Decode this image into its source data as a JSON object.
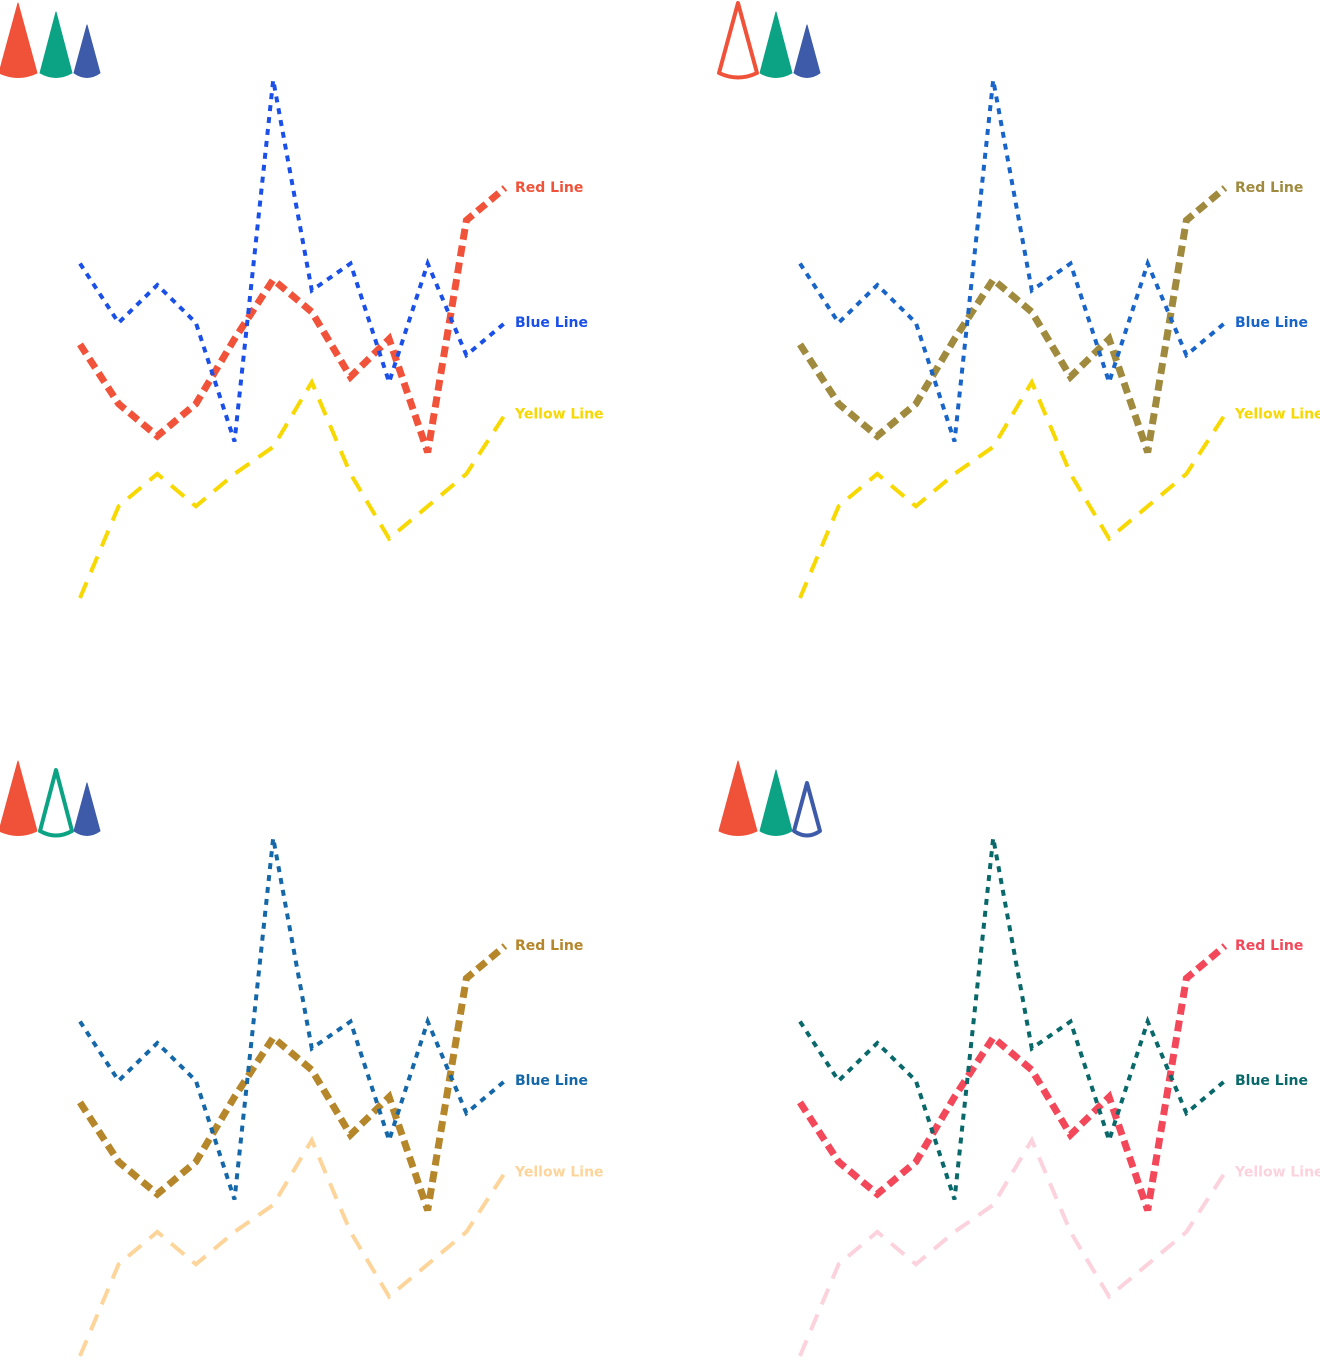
{
  "chart_data": [
    {
      "type": "line",
      "categories": [
        null,
        null,
        null,
        null,
        null,
        null,
        null,
        null,
        null,
        null,
        null,
        null
      ],
      "series": [
        {
          "name": "Red Line",
          "color": "#f1533a",
          "values": [
            51,
            40,
            34,
            40,
            52,
            63,
            57,
            45,
            52,
            31,
            74,
            80
          ]
        },
        {
          "name": "Blue Line",
          "color": "#1a4fe8",
          "values": [
            66,
            55,
            62,
            55,
            33,
            100,
            61,
            66,
            44,
            66,
            49,
            55
          ]
        },
        {
          "name": "Yellow Line",
          "color": "#f7d800",
          "values": [
            4,
            21,
            27,
            21,
            27,
            32,
            44,
            27,
            15,
            21,
            27,
            38
          ]
        }
      ]
    },
    {
      "type": "line",
      "categories": [
        null,
        null,
        null,
        null,
        null,
        null,
        null,
        null,
        null,
        null,
        null,
        null
      ],
      "series": [
        {
          "name": "Red Line",
          "color": "#a08a3e",
          "values": [
            51,
            40,
            34,
            40,
            52,
            63,
            57,
            45,
            52,
            31,
            74,
            80
          ]
        },
        {
          "name": "Blue Line",
          "color": "#1864c8",
          "values": [
            66,
            55,
            62,
            55,
            33,
            100,
            61,
            66,
            44,
            66,
            49,
            55
          ]
        },
        {
          "name": "Yellow Line",
          "color": "#f7d800",
          "values": [
            4,
            21,
            27,
            21,
            27,
            32,
            44,
            27,
            15,
            21,
            27,
            38
          ]
        }
      ]
    },
    {
      "type": "line",
      "categories": [
        null,
        null,
        null,
        null,
        null,
        null,
        null,
        null,
        null,
        null,
        null,
        null
      ],
      "series": [
        {
          "name": "Red Line",
          "color": "#b5862a",
          "values": [
            51,
            40,
            34,
            40,
            52,
            63,
            57,
            45,
            52,
            31,
            74,
            80
          ]
        },
        {
          "name": "Blue Line",
          "color": "#1467a8",
          "values": [
            66,
            55,
            62,
            55,
            33,
            100,
            61,
            66,
            44,
            66,
            49,
            55
          ]
        },
        {
          "name": "Yellow Line",
          "color": "#fdd59a",
          "values": [
            4,
            21,
            27,
            21,
            27,
            32,
            44,
            27,
            15,
            21,
            27,
            38
          ]
        }
      ]
    },
    {
      "type": "line",
      "categories": [
        null,
        null,
        null,
        null,
        null,
        null,
        null,
        null,
        null,
        null,
        null,
        null
      ],
      "series": [
        {
          "name": "Red Line",
          "color": "#f2485a",
          "values": [
            51,
            40,
            34,
            40,
            52,
            63,
            57,
            45,
            52,
            31,
            74,
            80
          ]
        },
        {
          "name": "Blue Line",
          "color": "#08686a",
          "values": [
            66,
            55,
            62,
            55,
            33,
            100,
            61,
            66,
            44,
            66,
            49,
            55
          ]
        },
        {
          "name": "Yellow Line",
          "color": "#fcd2dd",
          "values": [
            4,
            21,
            27,
            21,
            27,
            32,
            44,
            27,
            15,
            21,
            27,
            38
          ]
        }
      ]
    }
  ]
}
